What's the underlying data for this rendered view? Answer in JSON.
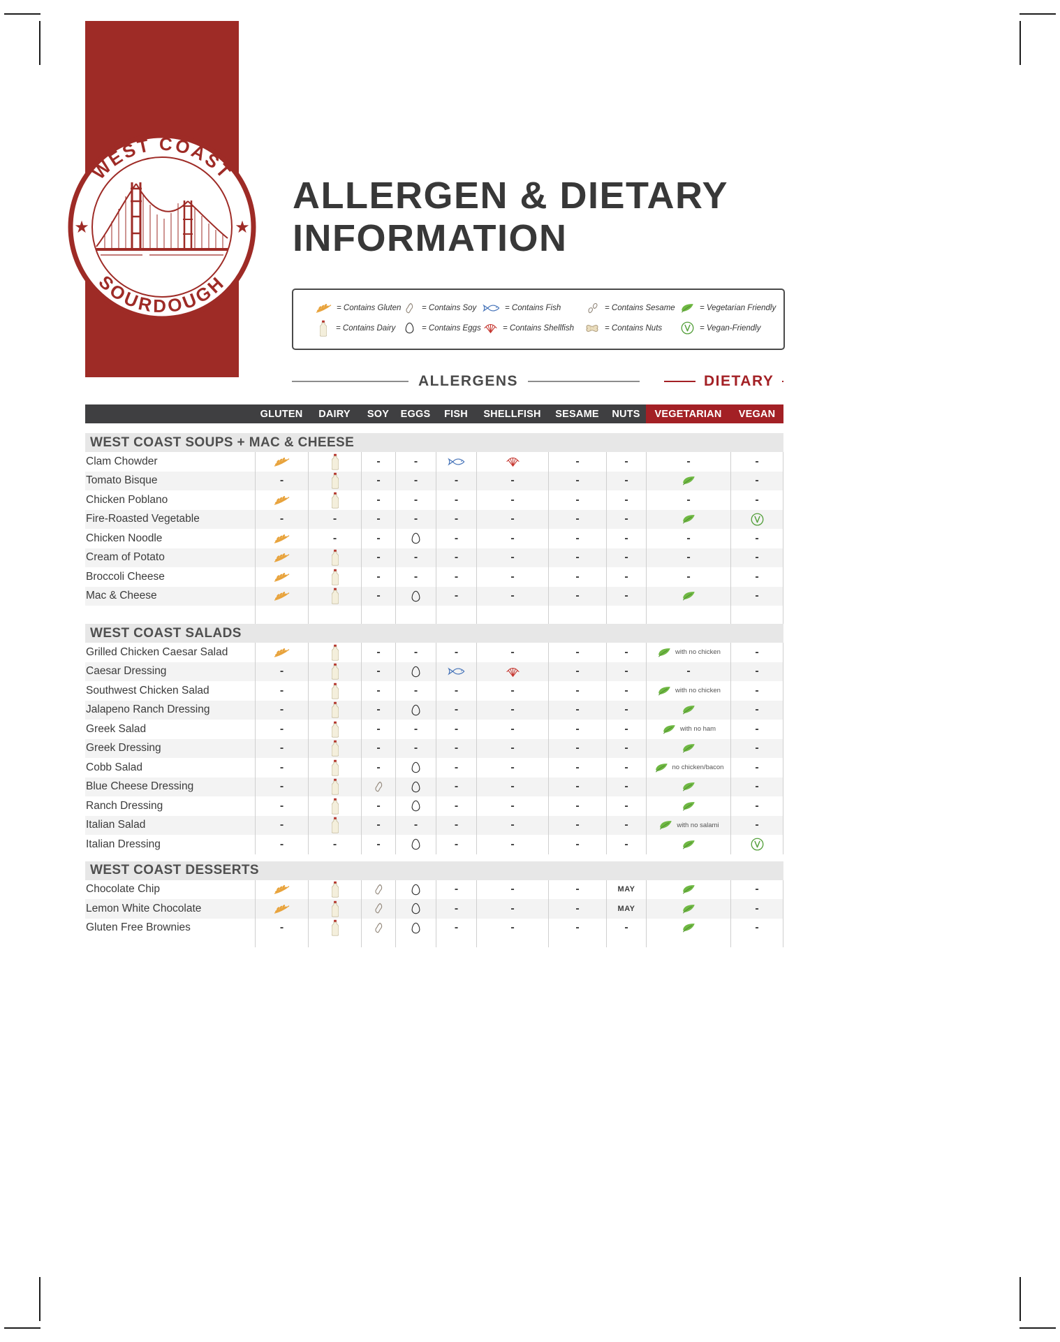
{
  "logo": {
    "arc_top": "WEST COAST",
    "arc_bottom": "SOURDOUGH",
    "star": "★"
  },
  "title": {
    "line1": "ALLERGEN & DIETARY",
    "line2": "INFORMATION"
  },
  "legend": {
    "rows": [
      [
        {
          "icon": "wheat",
          "label": "= Contains Gluten"
        },
        {
          "icon": "soy",
          "label": "= Contains Soy"
        },
        {
          "icon": "fish",
          "label": "= Contains Fish"
        },
        {
          "icon": "sesame",
          "label": "= Contains Sesame"
        },
        {
          "icon": "leaf",
          "label": "= Vegetarian Friendly"
        }
      ],
      [
        {
          "icon": "dairy",
          "label": "= Contains Dairy"
        },
        {
          "icon": "egg",
          "label": "= Contains Eggs"
        },
        {
          "icon": "shellfish",
          "label": "= Contains Shellfish"
        },
        {
          "icon": "nut",
          "label": "= Contains Nuts"
        },
        {
          "icon": "vegan",
          "label": "= Vegan-Friendly"
        }
      ]
    ]
  },
  "group_headers": {
    "allergens": "ALLERGENS",
    "dietary": "DIETARY"
  },
  "table": {
    "dash_char": "-",
    "may_label": "MAY",
    "columns": [
      "GLUTEN",
      "DAIRY",
      "SOY",
      "EGGS",
      "FISH",
      "SHELLFISH",
      "SESAME",
      "NUTS",
      "VEGETARIAN",
      "VEGAN"
    ],
    "sections": [
      {
        "title": "WEST COAST SOUPS + MAC & CHEESE",
        "spacer_after": true,
        "rows": [
          {
            "name": "Clam Chowder",
            "cells": [
              "wheat",
              "dairy",
              "dash",
              "dash",
              "fish",
              "shellfish",
              "dash",
              "dash",
              "dash",
              "dash"
            ]
          },
          {
            "name": "Tomato Bisque",
            "cells": [
              "dash",
              "dairy",
              "dash",
              "dash",
              "dash",
              "dash",
              "dash",
              "dash",
              "leaf",
              "dash"
            ]
          },
          {
            "name": "Chicken Poblano",
            "cells": [
              "wheat",
              "dairy",
              "dash",
              "dash",
              "dash",
              "dash",
              "dash",
              "dash",
              "dash",
              "dash"
            ]
          },
          {
            "name": "Fire-Roasted Vegetable",
            "cells": [
              "dash",
              "dash",
              "dash",
              "dash",
              "dash",
              "dash",
              "dash",
              "dash",
              "leaf",
              "vegan"
            ]
          },
          {
            "name": "Chicken Noodle",
            "cells": [
              "wheat",
              "dash",
              "dash",
              "egg",
              "dash",
              "dash",
              "dash",
              "dash",
              "dash",
              "dash"
            ]
          },
          {
            "name": "Cream of Potato",
            "cells": [
              "wheat",
              "dairy",
              "dash",
              "dash",
              "dash",
              "dash",
              "dash",
              "dash",
              "dash",
              "dash"
            ]
          },
          {
            "name": "Broccoli Cheese",
            "cells": [
              "wheat",
              "dairy",
              "dash",
              "dash",
              "dash",
              "dash",
              "dash",
              "dash",
              "dash",
              "dash"
            ]
          },
          {
            "name": "Mac & Cheese",
            "cells": [
              "wheat",
              "dairy",
              "dash",
              "egg",
              "dash",
              "dash",
              "dash",
              "dash",
              "leaf",
              "dash"
            ]
          }
        ]
      },
      {
        "title": "WEST COAST SALADS",
        "spacer_after": false,
        "rows": [
          {
            "name": "Grilled Chicken Caesar Salad",
            "cells": [
              "wheat",
              "dairy",
              "dash",
              "dash",
              "dash",
              "dash",
              "dash",
              "dash",
              {
                "icon": "leaf",
                "note": "with no chicken"
              },
              "dash"
            ]
          },
          {
            "name": "Caesar Dressing",
            "cells": [
              "dash",
              "dairy",
              "dash",
              "egg",
              "fish",
              "shellfish",
              "dash",
              "dash",
              "dash",
              "dash"
            ]
          },
          {
            "name": "Southwest Chicken Salad",
            "cells": [
              "dash",
              "dairy",
              "dash",
              "dash",
              "dash",
              "dash",
              "dash",
              "dash",
              {
                "icon": "leaf",
                "note": "with no chicken"
              },
              "dash"
            ]
          },
          {
            "name": "Jalapeno Ranch Dressing",
            "cells": [
              "dash",
              "dairy",
              "dash",
              "egg",
              "dash",
              "dash",
              "dash",
              "dash",
              "leaf",
              "dash"
            ]
          },
          {
            "name": "Greek Salad",
            "cells": [
              "dash",
              "dairy",
              "dash",
              "dash",
              "dash",
              "dash",
              "dash",
              "dash",
              {
                "icon": "leaf",
                "note": "with no ham"
              },
              "dash"
            ]
          },
          {
            "name": "Greek Dressing",
            "cells": [
              "dash",
              "dairy",
              "dash",
              "dash",
              "dash",
              "dash",
              "dash",
              "dash",
              "leaf",
              "dash"
            ]
          },
          {
            "name": "Cobb Salad",
            "cells": [
              "dash",
              "dairy",
              "dash",
              "egg",
              "dash",
              "dash",
              "dash",
              "dash",
              {
                "icon": "leaf",
                "note": "no chicken/bacon"
              },
              "dash"
            ]
          },
          {
            "name": "Blue Cheese Dressing",
            "cells": [
              "dash",
              "dairy",
              "soy",
              "egg",
              "dash",
              "dash",
              "dash",
              "dash",
              "leaf",
              "dash"
            ]
          },
          {
            "name": "Ranch Dressing",
            "cells": [
              "dash",
              "dairy",
              "dash",
              "egg",
              "dash",
              "dash",
              "dash",
              "dash",
              "leaf",
              "dash"
            ]
          },
          {
            "name": "Italian Salad",
            "cells": [
              "dash",
              "dairy",
              "dash",
              "dash",
              "dash",
              "dash",
              "dash",
              "dash",
              {
                "icon": "leaf",
                "note": "with no salami"
              },
              "dash"
            ]
          },
          {
            "name": "Italian Dressing",
            "cells": [
              "dash",
              "dash",
              "dash",
              "egg",
              "dash",
              "dash",
              "dash",
              "dash",
              "leaf",
              "vegan"
            ]
          }
        ]
      },
      {
        "title": "WEST COAST DESSERTS",
        "spacer_after": false,
        "rows": [
          {
            "name": "Chocolate Chip",
            "cells": [
              "wheat",
              "dairy",
              "soy",
              "egg",
              "dash",
              "dash",
              "dash",
              "may",
              "leaf",
              "dash"
            ]
          },
          {
            "name": "Lemon White Chocolate",
            "cells": [
              "wheat",
              "dairy",
              "soy",
              "egg",
              "dash",
              "dash",
              "dash",
              "may",
              "leaf",
              "dash"
            ]
          },
          {
            "name": "Gluten Free Brownies",
            "cells": [
              "dash",
              "dairy",
              "soy",
              "egg",
              "dash",
              "dash",
              "dash",
              "dash",
              "leaf",
              "dash"
            ]
          }
        ]
      }
    ]
  },
  "icons": {
    "wheat": "wheat-icon",
    "dairy": "dairy-bottle-icon",
    "soy": "soy-bean-icon",
    "egg": "egg-icon",
    "fish": "fish-icon",
    "shellfish": "shellfish-icon",
    "sesame": "sesame-icon",
    "nut": "peanut-icon",
    "leaf": "vegetarian-leaf-icon",
    "vegan": "vegan-v-icon",
    "dash": "dash-mark",
    "may": "may-contain-label"
  },
  "colors": {
    "brand_red": "#9E2B26",
    "header_red": "#A32025",
    "header_dark": "#3F3F41",
    "wheat_orange": "#E8A33C",
    "fish_blue": "#4472B8",
    "shellfish_red": "#C5352E",
    "leaf_green": "#6FB843",
    "vegan_green": "#55A03C"
  }
}
